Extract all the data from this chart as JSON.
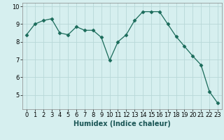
{
  "x": [
    0,
    1,
    2,
    3,
    4,
    5,
    6,
    7,
    8,
    9,
    10,
    11,
    12,
    13,
    14,
    15,
    16,
    17,
    18,
    19,
    20,
    21,
    22,
    23
  ],
  "y": [
    8.4,
    9.0,
    9.2,
    9.3,
    8.5,
    8.4,
    8.85,
    8.65,
    8.65,
    8.25,
    6.95,
    8.0,
    8.4,
    9.2,
    9.7,
    9.7,
    9.7,
    9.0,
    8.3,
    7.75,
    7.2,
    6.7,
    5.2,
    4.55
  ],
  "xlabel": "Humidex (Indice chaleur)",
  "xlim": [
    -0.5,
    23.5
  ],
  "ylim": [
    4.2,
    10.2
  ],
  "yticks": [
    5,
    6,
    7,
    8,
    9,
    10
  ],
  "xticks": [
    0,
    1,
    2,
    3,
    4,
    5,
    6,
    7,
    8,
    9,
    10,
    11,
    12,
    13,
    14,
    15,
    16,
    17,
    18,
    19,
    20,
    21,
    22,
    23
  ],
  "line_color": "#1a6b5a",
  "marker": "D",
  "marker_size": 2.5,
  "bg_color": "#d6efef",
  "grid_color": "#b8d8d8",
  "label_fontsize": 7,
  "tick_fontsize": 6
}
